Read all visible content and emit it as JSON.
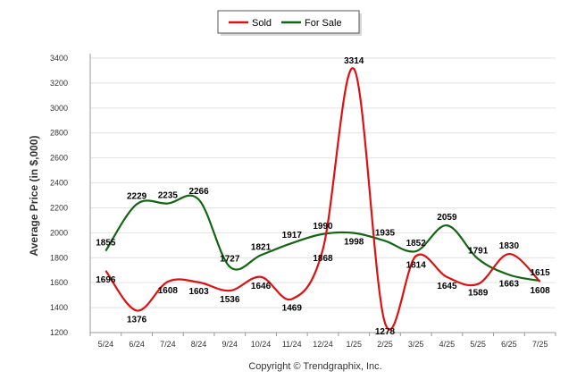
{
  "chart_data": {
    "type": "line",
    "x": [
      "5/24",
      "6/24",
      "7/24",
      "8/24",
      "9/24",
      "10/24",
      "11/24",
      "12/24",
      "1/25",
      "2/25",
      "3/25",
      "4/25",
      "5/25",
      "6/25",
      "7/25"
    ],
    "series": [
      {
        "name": "Sold",
        "color": "#dd1111",
        "values": [
          1696,
          1376,
          1608,
          1603,
          1536,
          1646,
          1469,
          1868,
          3314,
          1278,
          1814,
          1645,
          1589,
          1830,
          1608
        ]
      },
      {
        "name": "For Sale",
        "color": "#116611",
        "values": [
          1855,
          2229,
          2235,
          2266,
          1727,
          1821,
          1917,
          1990,
          1998,
          1935,
          1852,
          2059,
          1791,
          1663,
          1615
        ]
      }
    ],
    "ylabel": "Average Price (in $,000)",
    "yticks": [
      1200,
      1400,
      1600,
      1800,
      2000,
      2200,
      2400,
      2600,
      2800,
      3000,
      3200,
      3400
    ],
    "ylim": [
      1200,
      3400
    ],
    "grid": true,
    "legend_position": "top-center"
  },
  "footer": "Copyright © Trendgraphix, Inc."
}
